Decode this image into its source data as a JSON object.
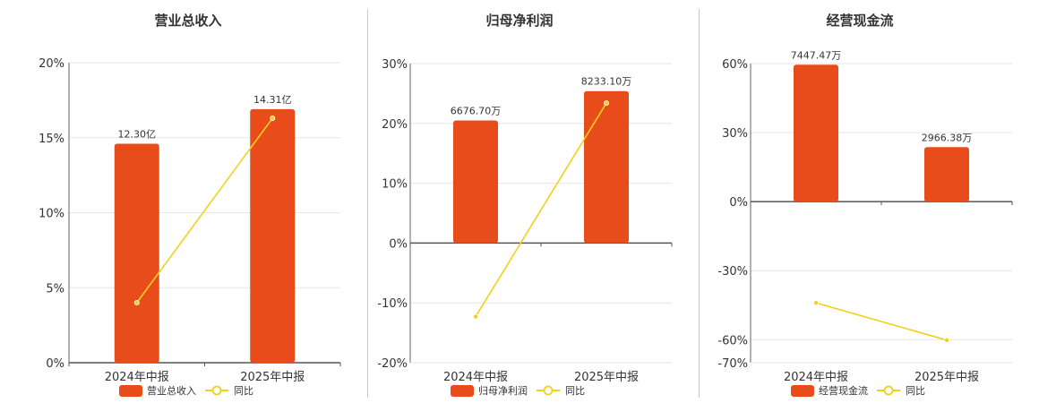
{
  "charts": [
    {
      "title": "营业总收入",
      "chart_data": {
        "type": "bar",
        "categories": [
          "2024年中报",
          "2025年中报"
        ],
        "series": [
          {
            "name": "营业总收入",
            "type": "bar",
            "values": [
              14.6,
              16.9
            ],
            "labels": [
              "12.30亿",
              "14.31亿"
            ],
            "color": "#e84c1a"
          },
          {
            "name": "同比",
            "type": "line",
            "values": [
              4.0,
              16.3
            ],
            "color": "#f0d21c"
          }
        ],
        "ylim": [
          0,
          20
        ],
        "yticks": [
          "0%",
          "5%",
          "10%",
          "15%",
          "20%"
        ],
        "ytick_values": [
          0,
          5,
          10,
          15,
          20
        ],
        "grid": true,
        "legend": "bottom"
      }
    },
    {
      "title": "归母净利润",
      "chart_data": {
        "type": "bar",
        "categories": [
          "2024年中报",
          "2025年中报"
        ],
        "series": [
          {
            "name": "归母净利润",
            "type": "bar",
            "values": [
              20.5,
              25.4
            ],
            "labels": [
              "6676.70万",
              "8233.10万"
            ],
            "color": "#e84c1a"
          },
          {
            "name": "同比",
            "type": "line",
            "values": [
              -12.3,
              23.4
            ],
            "color": "#f0d21c"
          }
        ],
        "ylim": [
          -20,
          30
        ],
        "yticks": [
          "-20%",
          "-10%",
          "0%",
          "10%",
          "20%",
          "30%"
        ],
        "ytick_values": [
          -20,
          -10,
          0,
          10,
          20,
          30
        ],
        "grid": true,
        "legend": "bottom"
      }
    },
    {
      "title": "经营现金流",
      "chart_data": {
        "type": "bar",
        "categories": [
          "2024年中报",
          "2025年中报"
        ],
        "series": [
          {
            "name": "经营现金流",
            "type": "bar",
            "values": [
              59.5,
              23.7
            ],
            "labels": [
              "7447.47万",
              "2966.38万"
            ],
            "color": "#e84c1a"
          },
          {
            "name": "同比",
            "type": "line",
            "values": [
              -44.0,
              -60.2
            ],
            "color": "#f0d21c"
          }
        ],
        "ylim": [
          -70,
          60
        ],
        "yticks": [
          "-70%",
          "-60%",
          "-30%",
          "0%",
          "30%",
          "60%"
        ],
        "ytick_values": [
          -70,
          -60,
          -30,
          0,
          30,
          60
        ],
        "grid": true,
        "legend": "bottom"
      }
    }
  ]
}
